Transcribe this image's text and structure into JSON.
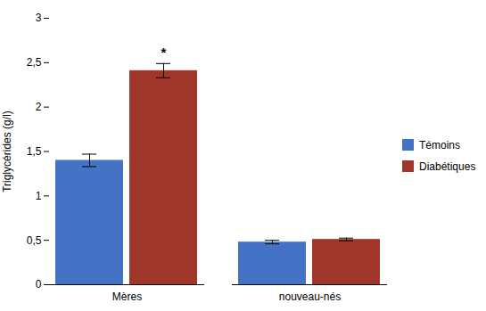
{
  "chart_data": {
    "type": "bar",
    "categories": [
      "Mères",
      "nouveau-nés"
    ],
    "series": [
      {
        "name": "Témoins",
        "color": "#4472C4",
        "values": [
          1.4,
          0.48
        ],
        "errors": [
          0.07,
          0.02
        ]
      },
      {
        "name": "Diabétiques",
        "color": "#A0352A",
        "values": [
          2.41,
          0.51
        ],
        "errors": [
          0.08,
          0.015
        ]
      }
    ],
    "ylabel": "Triglycérides (g/l)",
    "ylim": [
      0,
      3
    ],
    "yticks": [
      0,
      {
        "value": 0.5,
        "label": "0,5"
      },
      1,
      {
        "value": 1.5,
        "label": "1,5"
      },
      2,
      {
        "value": 2.5,
        "label": "2,5"
      },
      3
    ],
    "legend": "right",
    "annotations": [
      {
        "text": "*",
        "category": "Mères",
        "series": "Diabétiques",
        "y": 2.56
      }
    ]
  }
}
